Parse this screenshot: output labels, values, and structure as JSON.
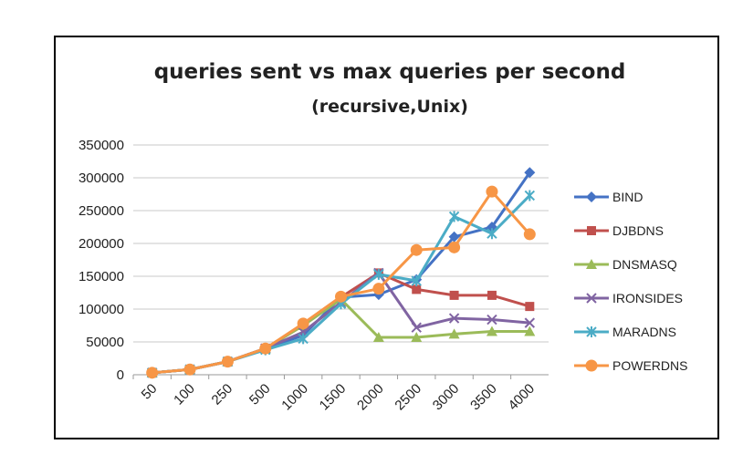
{
  "chart_data": {
    "type": "line",
    "title": "queries sent vs max queries per second",
    "subtitle": "(recursive,Unix)",
    "xlabel": "",
    "ylabel": "",
    "categories": [
      "50",
      "100",
      "250",
      "500",
      "1000",
      "1500",
      "2000",
      "2500",
      "3000",
      "3500",
      "4000"
    ],
    "ylim": [
      0,
      350000
    ],
    "yticks": [
      0,
      50000,
      100000,
      150000,
      200000,
      250000,
      300000,
      350000
    ],
    "grid": true,
    "legend_position": "right",
    "series": [
      {
        "name": "BIND",
        "color": "#4472c4",
        "marker": "diamond",
        "values": [
          3000,
          8000,
          20000,
          40000,
          60000,
          118000,
          122000,
          145000,
          210000,
          225000,
          308000
        ]
      },
      {
        "name": "DJBDNS",
        "color": "#c0504d",
        "marker": "square",
        "values": [
          3000,
          8000,
          20000,
          40000,
          75000,
          118000,
          155000,
          130000,
          121000,
          121000,
          104000
        ]
      },
      {
        "name": "DNSMASQ",
        "color": "#9bbb59",
        "marker": "triangle",
        "values": [
          3000,
          8000,
          20000,
          40000,
          75000,
          115000,
          57000,
          57000,
          62000,
          66000,
          66000
        ]
      },
      {
        "name": "IRONSIDES",
        "color": "#8064a2",
        "marker": "x",
        "values": [
          3000,
          8000,
          20000,
          40000,
          65000,
          110000,
          155000,
          72000,
          86000,
          84000,
          79000
        ]
      },
      {
        "name": "MARADNS",
        "color": "#4bacc6",
        "marker": "star",
        "values": [
          3000,
          8000,
          20000,
          38000,
          55000,
          108000,
          153000,
          143000,
          241000,
          215000,
          273000
        ]
      },
      {
        "name": "POWERDNS",
        "color": "#f79646",
        "marker": "circle",
        "values": [
          3000,
          8000,
          20000,
          40000,
          78000,
          119000,
          131000,
          190000,
          194000,
          279000,
          214000
        ]
      }
    ]
  }
}
